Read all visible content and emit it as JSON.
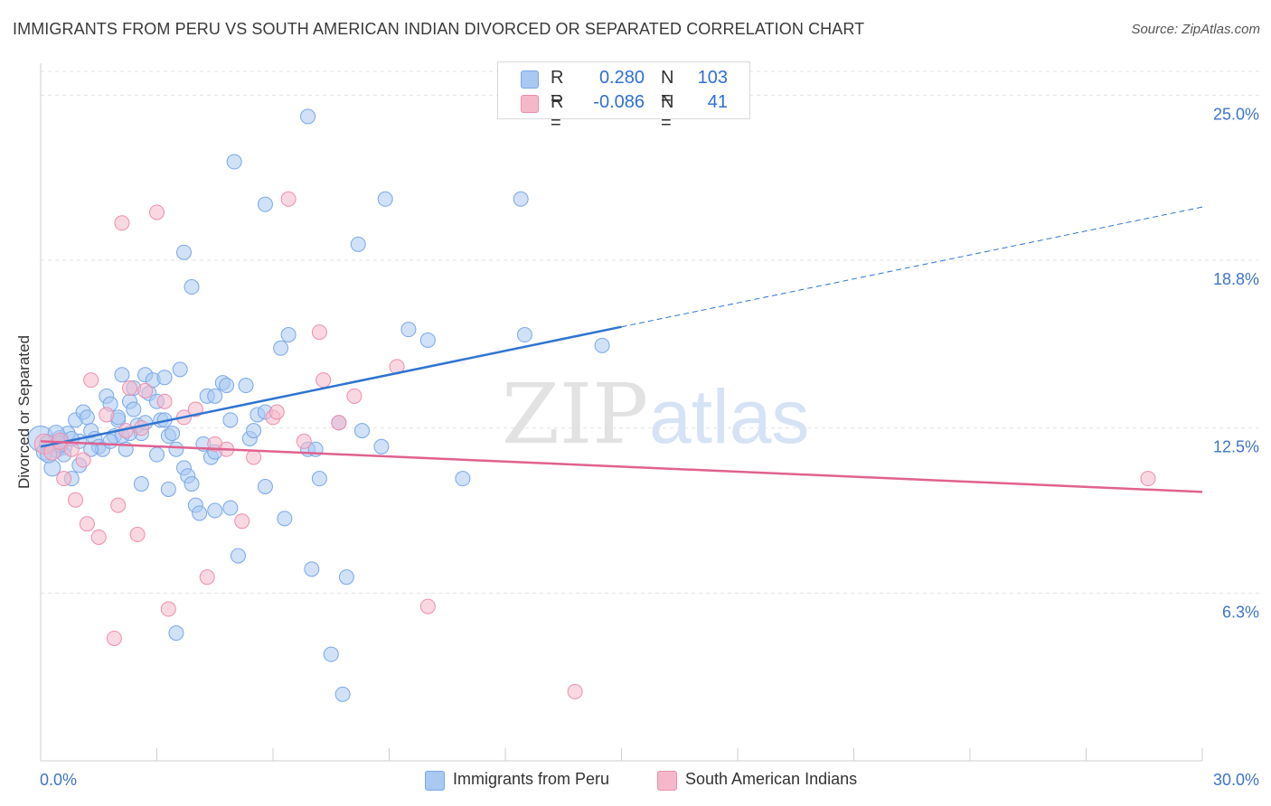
{
  "title": "IMMIGRANTS FROM PERU VS SOUTH AMERICAN INDIAN DIVORCED OR SEPARATED CORRELATION CHART",
  "source": "Source: ZipAtlas.com",
  "watermark": {
    "zip": "ZIP",
    "atlas": "atlas"
  },
  "legend": {
    "rows": [
      {
        "r_label": "R =",
        "r_value": "0.280",
        "n_label": "N =",
        "n_value": "103",
        "color": "#a9c8f2"
      },
      {
        "r_label": "R =",
        "r_value": "-0.086",
        "n_label": "N =",
        "n_value": "41",
        "color": "#f5b8cb"
      }
    ]
  },
  "bottom_legend": {
    "items": [
      {
        "label": "Immigrants from Peru",
        "color": "#a9c8f2"
      },
      {
        "label": "South American Indians",
        "color": "#f5b8cb"
      }
    ]
  },
  "chart_data": {
    "type": "scatter",
    "title": "IMMIGRANTS FROM PERU VS SOUTH AMERICAN INDIAN DIVORCED OR SEPARATED CORRELATION CHART",
    "xlabel": "",
    "ylabel": "Divorced or Separated",
    "xlim": [
      0,
      30
    ],
    "ylim": [
      0,
      26.2
    ],
    "x_tick_labels": [
      "0.0%",
      "30.0%"
    ],
    "y_ticks": [
      6.3,
      12.5,
      18.8,
      25.0
    ],
    "y_tick_labels": [
      "6.3%",
      "12.5%",
      "18.8%",
      "25.0%"
    ],
    "grid": true,
    "series": [
      {
        "name": "Immigrants from Peru",
        "color": "#7aa8e8",
        "fill": "#a9c8f2",
        "trend_color": "#2f74d0",
        "trend": {
          "x0": 0,
          "y0": 11.8,
          "x1": 15,
          "y1": 16.3,
          "dash_to_x": 30,
          "dash_to_y": 20.8
        },
        "points": [
          [
            0.0,
            12.1,
            14
          ],
          [
            0.1,
            11.6,
            9
          ],
          [
            0.2,
            11.9,
            10
          ],
          [
            0.3,
            11.0,
            9
          ],
          [
            0.4,
            11.7,
            9
          ],
          [
            0.5,
            12.1,
            9
          ],
          [
            0.6,
            11.8,
            9
          ],
          [
            0.7,
            12.3,
            8
          ],
          [
            0.8,
            10.6,
            8
          ],
          [
            0.9,
            12.8,
            8
          ],
          [
            1.0,
            11.1,
            8
          ],
          [
            1.1,
            13.1,
            8
          ],
          [
            1.2,
            12.9,
            8
          ],
          [
            1.3,
            12.4,
            8
          ],
          [
            1.4,
            12.1,
            8
          ],
          [
            1.5,
            11.8,
            8
          ],
          [
            1.6,
            11.7,
            8
          ],
          [
            1.7,
            13.7,
            8
          ],
          [
            1.8,
            13.4,
            8
          ],
          [
            1.9,
            12.2,
            8
          ],
          [
            2.0,
            12.8,
            8
          ],
          [
            2.1,
            12.2,
            8
          ],
          [
            2.1,
            14.5,
            8
          ],
          [
            2.2,
            11.7,
            8
          ],
          [
            2.3,
            13.5,
            8
          ],
          [
            2.4,
            13.2,
            8
          ],
          [
            2.4,
            14.0,
            8
          ],
          [
            2.5,
            12.6,
            8
          ],
          [
            2.6,
            12.3,
            8
          ],
          [
            2.6,
            10.4,
            8
          ],
          [
            2.7,
            14.5,
            8
          ],
          [
            2.8,
            13.8,
            8
          ],
          [
            2.9,
            14.3,
            8
          ],
          [
            3.0,
            13.5,
            8
          ],
          [
            3.0,
            11.5,
            8
          ],
          [
            3.1,
            12.8,
            8
          ],
          [
            3.2,
            14.4,
            8
          ],
          [
            3.3,
            12.2,
            8
          ],
          [
            3.3,
            10.2,
            8
          ],
          [
            3.4,
            12.3,
            8
          ],
          [
            3.5,
            11.7,
            8
          ],
          [
            3.6,
            14.7,
            8
          ],
          [
            3.7,
            19.1,
            8
          ],
          [
            3.7,
            11.0,
            8
          ],
          [
            3.8,
            10.7,
            8
          ],
          [
            3.9,
            17.8,
            8
          ],
          [
            3.9,
            10.4,
            8
          ],
          [
            4.0,
            9.6,
            8
          ],
          [
            4.1,
            9.3,
            8
          ],
          [
            4.2,
            11.9,
            8
          ],
          [
            4.3,
            13.7,
            8
          ],
          [
            4.4,
            11.4,
            8
          ],
          [
            4.5,
            11.6,
            8
          ],
          [
            4.5,
            9.4,
            8
          ],
          [
            4.7,
            14.2,
            8
          ],
          [
            4.8,
            14.1,
            8
          ],
          [
            4.9,
            12.8,
            8
          ],
          [
            4.9,
            9.5,
            8
          ],
          [
            5.0,
            22.5,
            8
          ],
          [
            5.1,
            7.7,
            8
          ],
          [
            5.3,
            14.1,
            8
          ],
          [
            5.4,
            12.1,
            8
          ],
          [
            5.5,
            12.4,
            8
          ],
          [
            5.6,
            13.0,
            8
          ],
          [
            5.8,
            13.1,
            8
          ],
          [
            5.8,
            20.9,
            8
          ],
          [
            5.8,
            10.3,
            8
          ],
          [
            6.2,
            15.5,
            8
          ],
          [
            6.3,
            9.1,
            8
          ],
          [
            6.4,
            16.0,
            8
          ],
          [
            6.9,
            24.2,
            8
          ],
          [
            6.9,
            11.7,
            8
          ],
          [
            7.0,
            7.2,
            8
          ],
          [
            7.1,
            11.7,
            8
          ],
          [
            7.2,
            10.6,
            8
          ],
          [
            7.5,
            4.0,
            8
          ],
          [
            7.7,
            12.7,
            8
          ],
          [
            7.8,
            2.5,
            8
          ],
          [
            7.9,
            6.9,
            8
          ],
          [
            8.2,
            19.4,
            8
          ],
          [
            8.3,
            12.4,
            8
          ],
          [
            8.8,
            11.8,
            8
          ],
          [
            8.9,
            21.1,
            8
          ],
          [
            9.5,
            16.2,
            8
          ],
          [
            10.0,
            15.8,
            8
          ],
          [
            10.9,
            10.6,
            8
          ],
          [
            12.4,
            21.1,
            8
          ],
          [
            12.5,
            16.0,
            8
          ],
          [
            14.5,
            15.6,
            8
          ],
          [
            0.2,
            11.5,
            9
          ],
          [
            0.4,
            12.3,
            9
          ],
          [
            0.6,
            11.5,
            8
          ],
          [
            1.0,
            12.0,
            8
          ],
          [
            1.3,
            11.7,
            8
          ],
          [
            2.3,
            12.3,
            8
          ],
          [
            3.5,
            4.8,
            8
          ],
          [
            4.5,
            13.7,
            8
          ],
          [
            2.0,
            12.9,
            8
          ],
          [
            1.8,
            12.0,
            8
          ],
          [
            2.7,
            12.7,
            8
          ],
          [
            3.2,
            12.8,
            8
          ],
          [
            0.5,
            11.9,
            9
          ],
          [
            0.8,
            12.1,
            8
          ]
        ]
      },
      {
        "name": "South American Indians",
        "color": "#ec8fad",
        "fill": "#f5b8cb",
        "trend_color": "#e0628f",
        "trend": {
          "x0": 0,
          "y0": 12.0,
          "x1": 30,
          "y1": 10.1
        },
        "points": [
          [
            0.1,
            11.9,
            11
          ],
          [
            0.3,
            11.6,
            9
          ],
          [
            0.5,
            12.0,
            9
          ],
          [
            0.6,
            10.6,
            8
          ],
          [
            0.8,
            11.7,
            8
          ],
          [
            0.9,
            9.8,
            8
          ],
          [
            1.1,
            11.3,
            8
          ],
          [
            1.2,
            8.9,
            8
          ],
          [
            1.3,
            14.3,
            8
          ],
          [
            1.5,
            8.4,
            8
          ],
          [
            1.7,
            13.0,
            8
          ],
          [
            2.0,
            9.6,
            8
          ],
          [
            2.1,
            20.2,
            8
          ],
          [
            2.2,
            12.4,
            8
          ],
          [
            2.3,
            14.0,
            8
          ],
          [
            2.5,
            8.5,
            8
          ],
          [
            2.6,
            12.5,
            8
          ],
          [
            2.7,
            13.9,
            8
          ],
          [
            3.0,
            20.6,
            8
          ],
          [
            3.2,
            13.5,
            8
          ],
          [
            3.3,
            5.7,
            8
          ],
          [
            3.7,
            12.9,
            8
          ],
          [
            4.0,
            13.2,
            8
          ],
          [
            4.3,
            6.9,
            8
          ],
          [
            4.5,
            11.9,
            8
          ],
          [
            4.8,
            11.7,
            8
          ],
          [
            5.2,
            9.0,
            8
          ],
          [
            5.5,
            11.4,
            8
          ],
          [
            6.0,
            12.9,
            8
          ],
          [
            6.1,
            13.1,
            8
          ],
          [
            6.4,
            21.1,
            8
          ],
          [
            6.8,
            12.0,
            8
          ],
          [
            7.2,
            16.1,
            8
          ],
          [
            7.3,
            14.3,
            8
          ],
          [
            7.7,
            12.7,
            8
          ],
          [
            8.1,
            13.7,
            8
          ],
          [
            9.2,
            14.8,
            8
          ],
          [
            10.0,
            5.8,
            8
          ],
          [
            13.8,
            2.6,
            8
          ],
          [
            28.6,
            10.6,
            8
          ],
          [
            1.9,
            4.6,
            8
          ]
        ]
      }
    ]
  }
}
